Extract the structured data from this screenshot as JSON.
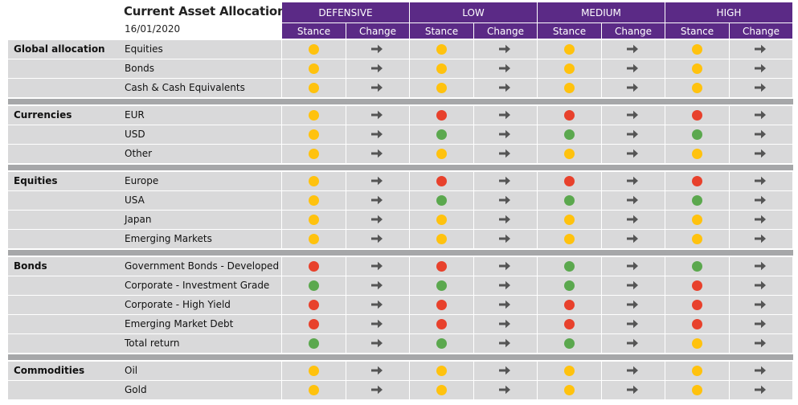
{
  "title": "Current Asset Allocation",
  "date": "16/01/2020",
  "profiles": [
    "DEFENSIVE",
    "LOW",
    "MEDIUM",
    "HIGH"
  ],
  "subheaders": {
    "stance": "Stance",
    "change": "Change"
  },
  "colors": {
    "header": "#5b2a86",
    "yellow": "#ffc20e",
    "red": "#e8412c",
    "green": "#5ba84e",
    "arrow": "#555555"
  },
  "change_icon": "arrow-right-icon",
  "sections": [
    {
      "name": "Global allocation",
      "rows": [
        {
          "label": "Equities",
          "stances": [
            "yellow",
            "yellow",
            "yellow",
            "yellow"
          ]
        },
        {
          "label": "Bonds",
          "stances": [
            "yellow",
            "yellow",
            "yellow",
            "yellow"
          ]
        },
        {
          "label": "Cash & Cash Equivalents",
          "stances": [
            "yellow",
            "yellow",
            "yellow",
            "yellow"
          ]
        }
      ]
    },
    {
      "name": "Currencies",
      "rows": [
        {
          "label": "EUR",
          "stances": [
            "yellow",
            "red",
            "red",
            "red"
          ]
        },
        {
          "label": "USD",
          "stances": [
            "yellow",
            "green",
            "green",
            "green"
          ]
        },
        {
          "label": "Other",
          "stances": [
            "yellow",
            "yellow",
            "yellow",
            "yellow"
          ]
        }
      ]
    },
    {
      "name": "Equities",
      "rows": [
        {
          "label": "Europe",
          "stances": [
            "yellow",
            "red",
            "red",
            "red"
          ]
        },
        {
          "label": "USA",
          "stances": [
            "yellow",
            "green",
            "green",
            "green"
          ]
        },
        {
          "label": "Japan",
          "stances": [
            "yellow",
            "yellow",
            "yellow",
            "yellow"
          ]
        },
        {
          "label": "Emerging Markets",
          "stances": [
            "yellow",
            "yellow",
            "yellow",
            "yellow"
          ]
        }
      ]
    },
    {
      "name": "Bonds",
      "rows": [
        {
          "label": "Government Bonds - Developed",
          "stances": [
            "red",
            "red",
            "green",
            "green"
          ]
        },
        {
          "label": "Corporate - Investment Grade",
          "stances": [
            "green",
            "green",
            "green",
            "red"
          ]
        },
        {
          "label": "Corporate - High Yield",
          "stances": [
            "red",
            "red",
            "red",
            "red"
          ]
        },
        {
          "label": "Emerging Market Debt",
          "stances": [
            "red",
            "red",
            "red",
            "red"
          ]
        },
        {
          "label": "Total return",
          "stances": [
            "green",
            "green",
            "green",
            "yellow"
          ]
        }
      ]
    },
    {
      "name": "Commodities",
      "rows": [
        {
          "label": "Oil",
          "stances": [
            "yellow",
            "yellow",
            "yellow",
            "yellow"
          ]
        },
        {
          "label": "Gold",
          "stances": [
            "yellow",
            "yellow",
            "yellow",
            "yellow"
          ]
        }
      ]
    }
  ]
}
